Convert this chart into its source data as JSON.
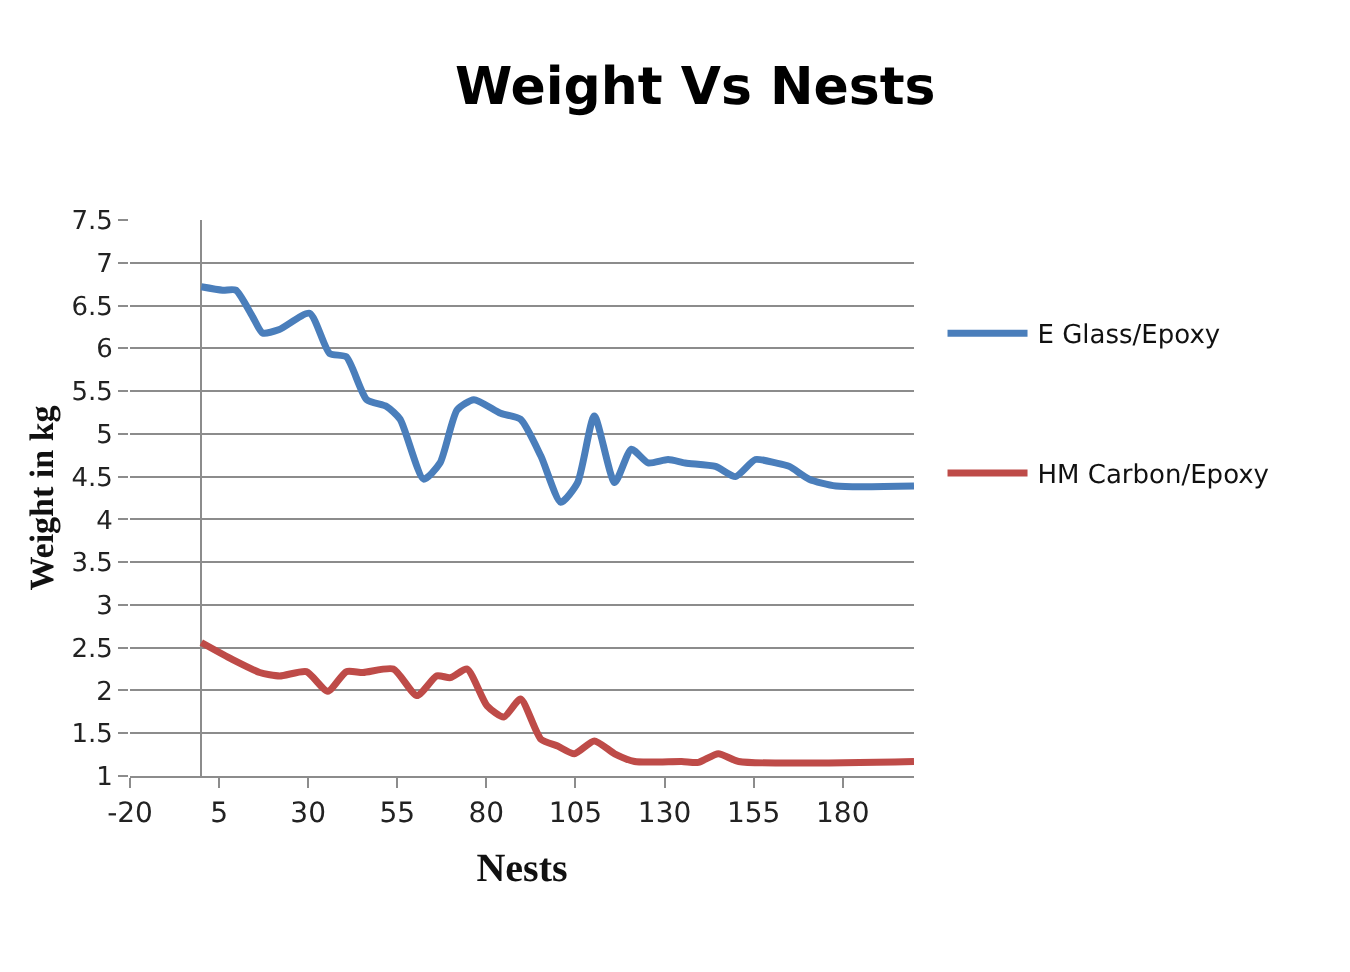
{
  "chart_data": {
    "type": "line",
    "title": "Weight Vs Nests",
    "xlabel": "Nests",
    "ylabel": "Weight in kg",
    "xlim": [
      -20,
      200
    ],
    "xticks": [
      -20,
      5,
      30,
      55,
      80,
      105,
      130,
      155,
      180
    ],
    "ylim": [
      1,
      7.5
    ],
    "yticks": [
      1,
      1.5,
      2,
      2.5,
      3,
      3.5,
      4,
      4.5,
      5,
      5.5,
      6,
      6.5,
      7,
      7.5
    ],
    "grid": "y",
    "legend": "right",
    "marker": "none",
    "line_style": "solid",
    "series": [
      {
        "name": "E Glass/Epoxy",
        "color": "#4a7ebb",
        "x": [
          0,
          6,
          9.7,
          14.4,
          17.2,
          21.9,
          30.4,
          36,
          40.7,
          46.4,
          52,
          55.8,
          62.4,
          67,
          71.8,
          76.5,
          84,
          89.6,
          95.3,
          100.9,
          105.6,
          110.3,
          116,
          120.7,
          125.4,
          131,
          135.8,
          144.3,
          149.9,
          155.5,
          161.2,
          165,
          170.6,
          178.1,
          200
        ],
        "values": [
          6.72,
          6.68,
          6.68,
          6.37,
          6.18,
          6.22,
          6.41,
          5.94,
          5.9,
          5.4,
          5.32,
          5.17,
          4.47,
          4.66,
          5.28,
          5.4,
          5.24,
          5.17,
          4.74,
          4.2,
          4.43,
          5.21,
          4.43,
          4.82,
          4.66,
          4.7,
          4.66,
          4.62,
          4.5,
          4.7,
          4.66,
          4.62,
          4.47,
          4.39,
          4.39
        ]
      },
      {
        "name": "HM Carbon/Epoxy",
        "color": "#be4b48",
        "x": [
          0,
          8.8,
          16.4,
          22,
          29.5,
          35.5,
          40.7,
          45.4,
          53.9,
          60.5,
          66.1,
          69.9,
          74.6,
          80.2,
          84.9,
          89.6,
          95.3,
          100,
          104.7,
          110.3,
          116,
          121.6,
          134.8,
          139.5,
          145.1,
          150.8,
          200
        ],
        "values": [
          2.56,
          2.36,
          2.21,
          2.17,
          2.22,
          1.99,
          2.22,
          2.21,
          2.25,
          1.94,
          2.17,
          2.15,
          2.25,
          1.82,
          1.69,
          1.9,
          1.43,
          1.35,
          1.26,
          1.41,
          1.26,
          1.17,
          1.17,
          1.16,
          1.26,
          1.17,
          1.17
        ]
      }
    ]
  }
}
